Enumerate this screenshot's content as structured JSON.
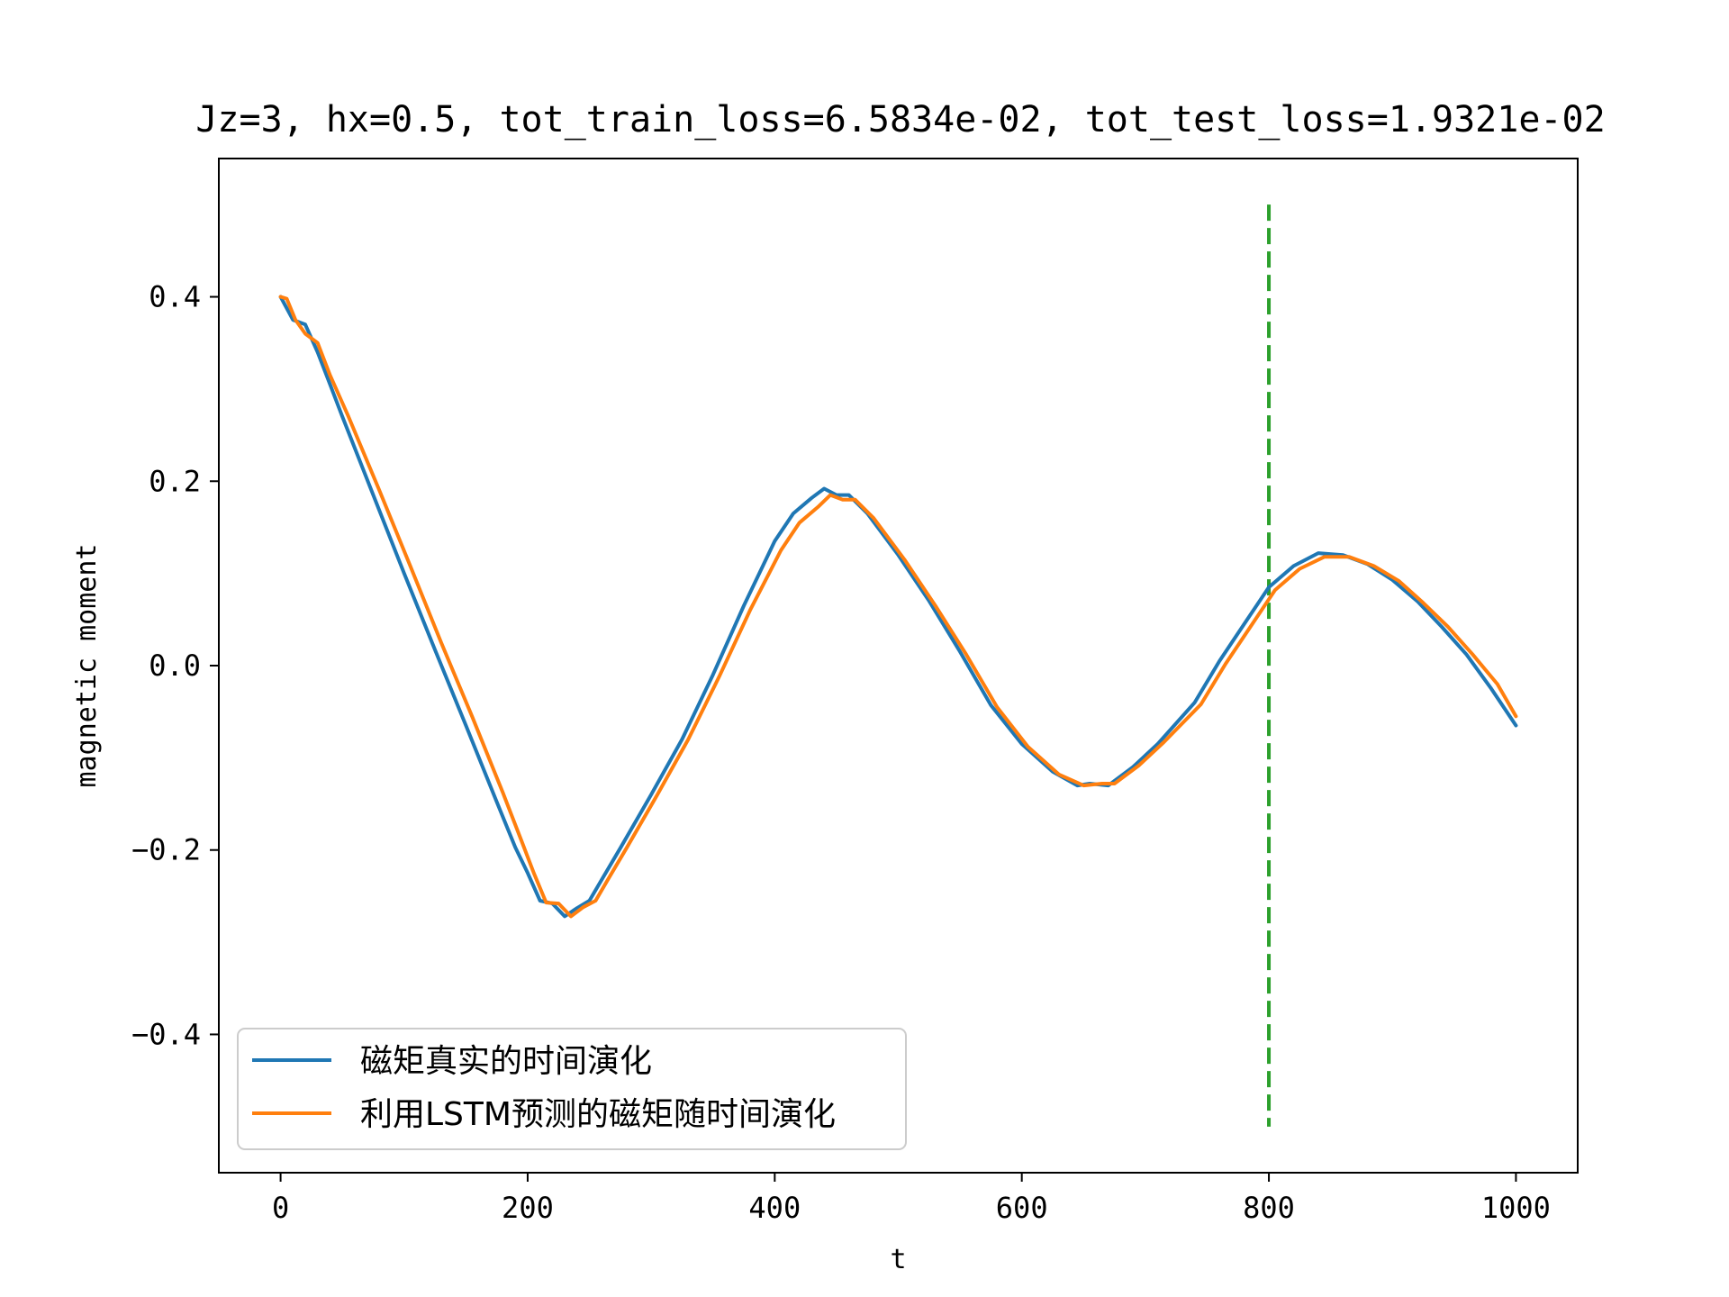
{
  "chart_data": {
    "type": "line",
    "title": "Jz=3, hx=0.5, tot_train_loss=6.5834e-02, tot_test_loss=1.9321e-02",
    "xlabel": "t",
    "ylabel": "magnetic moment",
    "xlim": [
      -50,
      1050
    ],
    "ylim": [
      -0.55,
      0.55
    ],
    "xticks": [
      0,
      200,
      400,
      600,
      800,
      1000
    ],
    "yticks": [
      -0.4,
      -0.2,
      0.0,
      0.2,
      0.4
    ],
    "xtick_labels": [
      "0",
      "200",
      "400",
      "600",
      "800",
      "1000"
    ],
    "ytick_labels": [
      "−0.4",
      "−0.2",
      "0.0",
      "0.2",
      "0.4"
    ],
    "grid": false,
    "legend": "lower-left",
    "series": [
      {
        "name": "磁矩真实的时间演化",
        "color": "#1f77b4",
        "x": [
          0,
          10,
          20,
          30,
          40,
          50,
          75,
          100,
          125,
          150,
          175,
          190,
          200,
          210,
          220,
          230,
          240,
          250,
          260,
          275,
          300,
          325,
          350,
          375,
          400,
          415,
          430,
          440,
          450,
          460,
          475,
          500,
          525,
          550,
          575,
          600,
          625,
          645,
          655,
          670,
          690,
          710,
          740,
          760,
          780,
          800,
          820,
          840,
          860,
          880,
          900,
          920,
          940,
          960,
          980,
          1000
        ],
        "y": [
          0.4,
          0.375,
          0.37,
          0.34,
          0.305,
          0.27,
          0.185,
          0.1,
          0.017,
          -0.065,
          -0.148,
          -0.197,
          -0.225,
          -0.255,
          -0.258,
          -0.272,
          -0.263,
          -0.255,
          -0.232,
          -0.198,
          -0.14,
          -0.08,
          -0.01,
          0.065,
          0.135,
          0.165,
          0.182,
          0.192,
          0.185,
          0.185,
          0.165,
          0.12,
          0.07,
          0.015,
          -0.043,
          -0.085,
          -0.115,
          -0.13,
          -0.128,
          -0.13,
          -0.11,
          -0.085,
          -0.04,
          0.005,
          0.045,
          0.085,
          0.108,
          0.122,
          0.12,
          0.11,
          0.093,
          0.07,
          0.042,
          0.012,
          -0.025,
          -0.065
        ]
      },
      {
        "name": "利用LSTM预测的磁矩随时间演化",
        "color": "#ff7f0e",
        "x": [
          0,
          5,
          12,
          20,
          30,
          40,
          55,
          80,
          105,
          130,
          155,
          180,
          195,
          205,
          215,
          225,
          235,
          245,
          255,
          265,
          280,
          305,
          330,
          355,
          380,
          405,
          420,
          435,
          445,
          455,
          465,
          480,
          505,
          530,
          555,
          580,
          605,
          630,
          650,
          665,
          675,
          695,
          715,
          745,
          765,
          785,
          805,
          825,
          845,
          865,
          885,
          905,
          925,
          945,
          965,
          985,
          1000
        ],
        "y": [
          0.4,
          0.398,
          0.375,
          0.36,
          0.35,
          0.315,
          0.27,
          0.19,
          0.108,
          0.025,
          -0.055,
          -0.138,
          -0.19,
          -0.225,
          -0.257,
          -0.258,
          -0.272,
          -0.262,
          -0.255,
          -0.232,
          -0.198,
          -0.14,
          -0.08,
          -0.012,
          0.06,
          0.125,
          0.155,
          0.172,
          0.185,
          0.18,
          0.18,
          0.16,
          0.115,
          0.065,
          0.012,
          -0.045,
          -0.088,
          -0.118,
          -0.13,
          -0.128,
          -0.128,
          -0.108,
          -0.083,
          -0.042,
          0.002,
          0.042,
          0.082,
          0.105,
          0.118,
          0.118,
          0.108,
          0.092,
          0.068,
          0.042,
          0.012,
          -0.02,
          -0.055
        ]
      }
    ],
    "annotations": [
      {
        "type": "vline",
        "x": 800,
        "ymin": -0.5,
        "ymax": 0.5,
        "color": "#2ca02c",
        "style": "dashed"
      }
    ]
  }
}
